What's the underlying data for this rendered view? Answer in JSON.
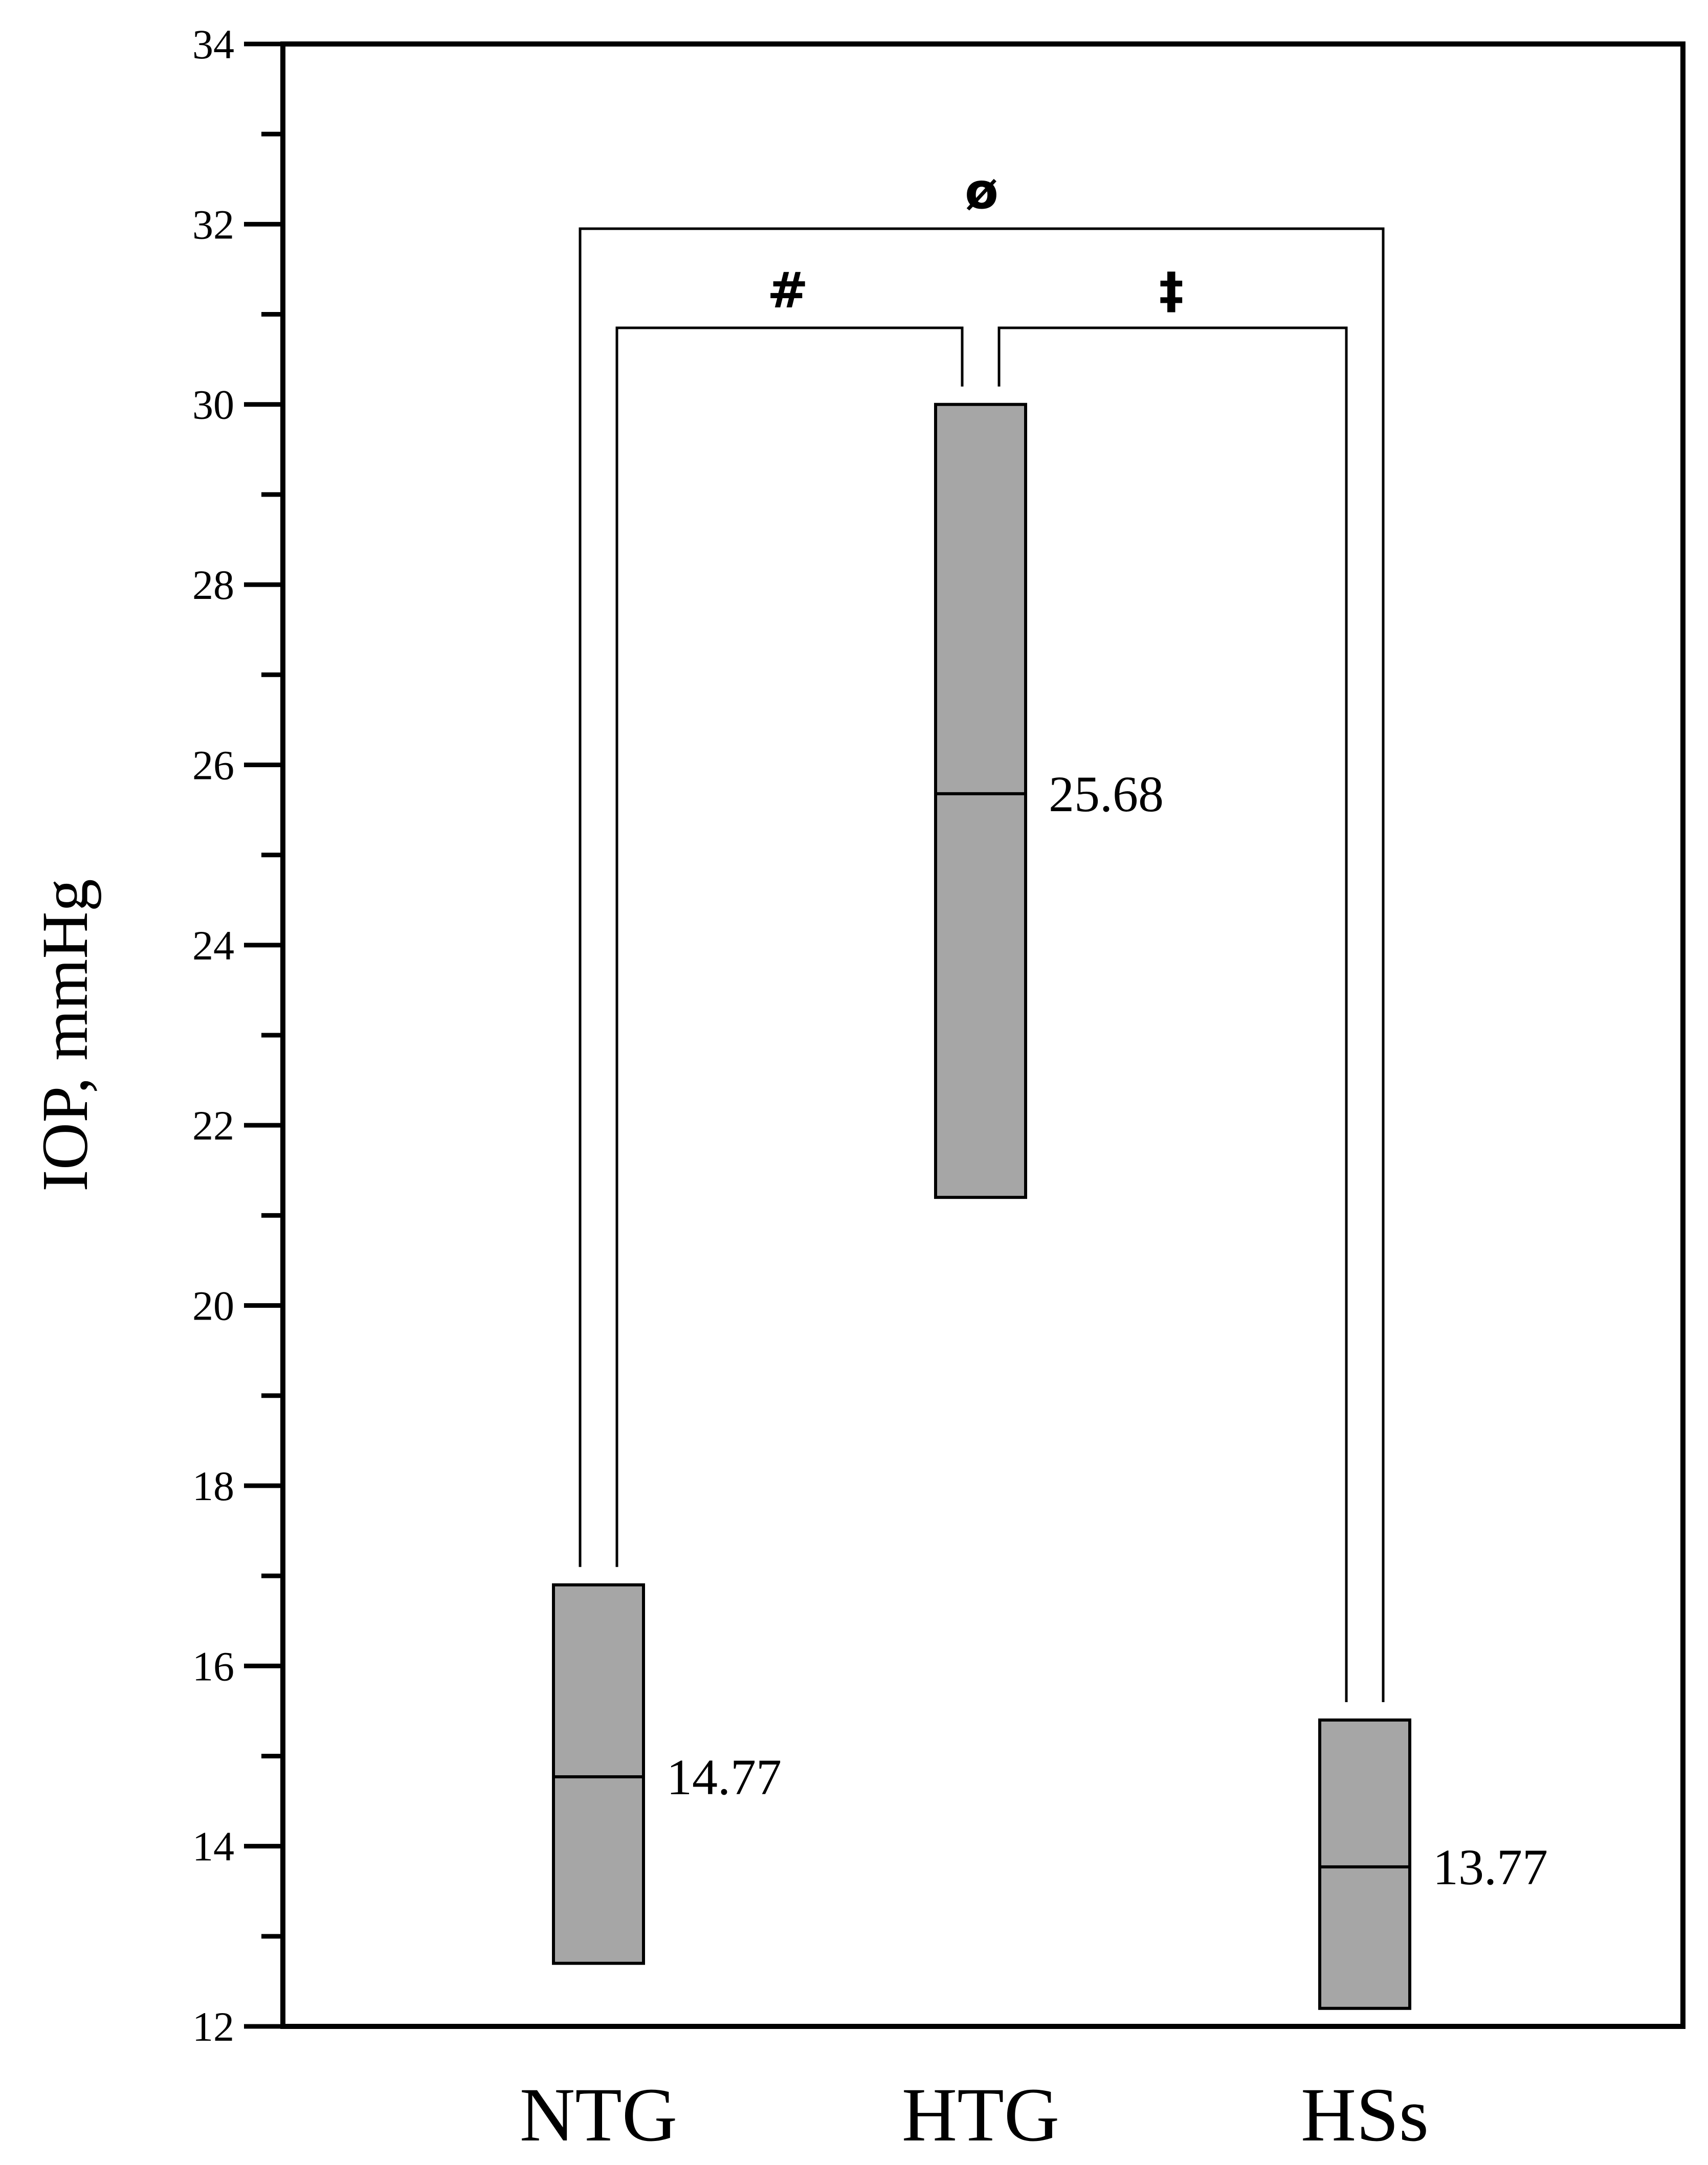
{
  "chart_data": {
    "type": "box",
    "ylabel": "IOP, mmHg",
    "ylim": [
      12,
      34
    ],
    "yticks": [
      "12",
      "14",
      "16",
      "18",
      "20",
      "22",
      "24",
      "26",
      "28",
      "30",
      "32",
      "34"
    ],
    "yminor_step": 1,
    "categories": [
      "NTG",
      "HTG",
      "HSs"
    ],
    "boxes": [
      {
        "category": "NTG",
        "low": 12.7,
        "high": 16.9,
        "median": 14.77,
        "median_label": "14.77"
      },
      {
        "category": "HTG",
        "low": 21.2,
        "high": 30.0,
        "median": 25.68,
        "median_label": "25.68"
      },
      {
        "category": "HSs",
        "low": 12.2,
        "high": 15.4,
        "median": 13.77,
        "median_label": "13.77"
      }
    ],
    "significance": [
      {
        "from": "NTG",
        "to": "HTG",
        "symbol": "#",
        "level": 30.85
      },
      {
        "from": "HTG",
        "to": "HSs",
        "symbol": "‡",
        "level": 30.85
      },
      {
        "from": "NTG",
        "to": "HSs",
        "symbol": "ø",
        "level": 31.95
      }
    ],
    "box_color": "#a6a6a6",
    "line_color": "#000000",
    "grid": false
  }
}
